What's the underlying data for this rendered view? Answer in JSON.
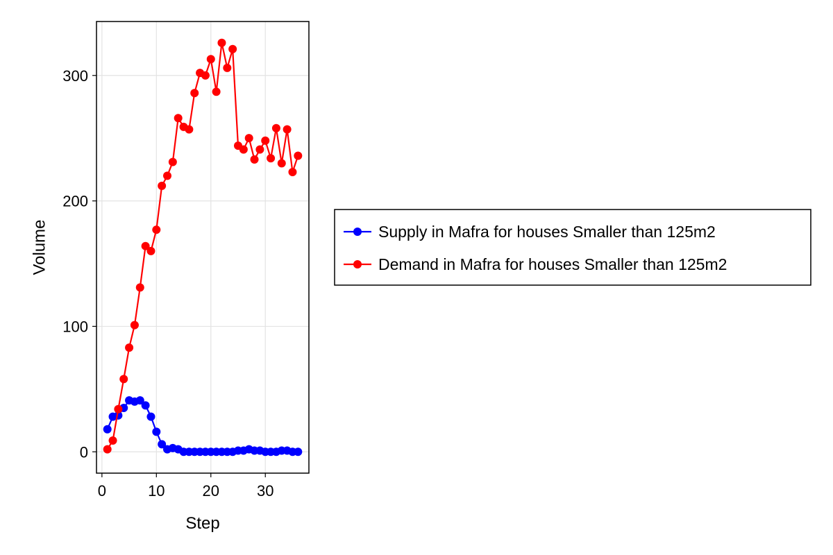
{
  "chart_data": {
    "type": "line",
    "title": "",
    "xlabel": "Step",
    "ylabel": "Volume",
    "xlim": [
      -1,
      38
    ],
    "ylim": [
      -17,
      343
    ],
    "xticks": [
      0,
      10,
      20,
      30
    ],
    "yticks": [
      0,
      100,
      200,
      300
    ],
    "grid": true,
    "legend_position": "right",
    "series": [
      {
        "name": "Supply in Mafra for houses Smaller than 125m2",
        "color": "#0000ff",
        "marker": "circle",
        "x": [
          1,
          2,
          3,
          4,
          5,
          6,
          7,
          8,
          9,
          10,
          11,
          12,
          13,
          14,
          15,
          16,
          17,
          18,
          19,
          20,
          21,
          22,
          23,
          24,
          25,
          26,
          27,
          28,
          29,
          30,
          31,
          32,
          33,
          34,
          35,
          36
        ],
        "values": [
          18,
          28,
          29,
          35,
          41,
          40,
          41,
          37,
          28,
          16,
          6,
          2,
          3,
          2,
          0,
          0,
          0,
          0,
          0,
          0,
          0,
          0,
          0,
          0,
          1,
          1,
          2,
          1,
          1,
          0,
          0,
          0,
          1,
          1,
          0,
          0
        ]
      },
      {
        "name": "Demand in Mafra for houses Smaller than 125m2",
        "color": "#ff0000",
        "marker": "circle",
        "x": [
          1,
          2,
          3,
          4,
          5,
          6,
          7,
          8,
          9,
          10,
          11,
          12,
          13,
          14,
          15,
          16,
          17,
          18,
          19,
          20,
          21,
          22,
          23,
          24,
          25,
          26,
          27,
          28,
          29,
          30,
          31,
          32,
          33,
          34,
          35,
          36
        ],
        "values": [
          2,
          9,
          34,
          58,
          83,
          101,
          131,
          164,
          160,
          177,
          212,
          220,
          231,
          266,
          259,
          257,
          286,
          302,
          300,
          313,
          287,
          326,
          306,
          321,
          244,
          241,
          250,
          233,
          241,
          248,
          234,
          258,
          230,
          257,
          223,
          236
        ]
      }
    ]
  }
}
